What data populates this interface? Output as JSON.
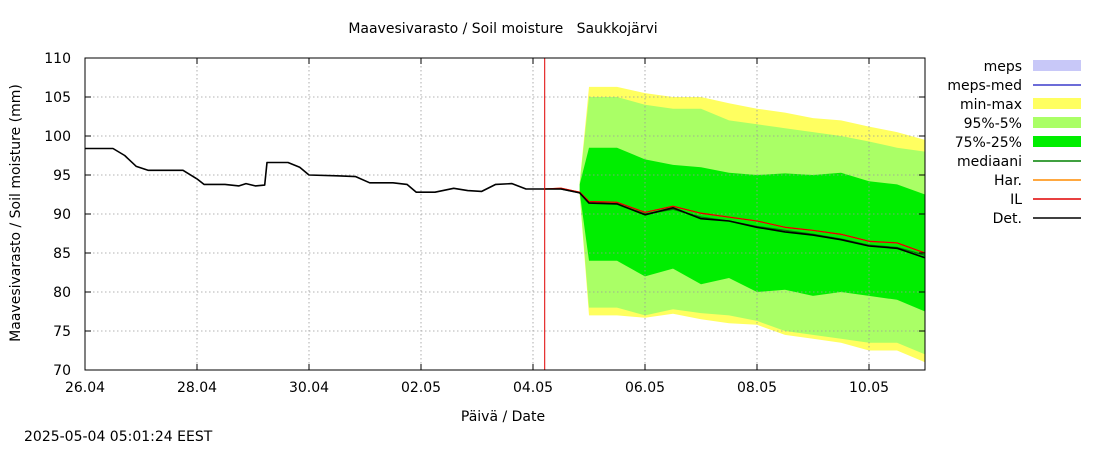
{
  "timestamp": "2025-05-04 05:01:24 EEST",
  "chart_data": {
    "type": "area",
    "title": "Maavesivarasto / Soil moisture   Saukkojärvi",
    "xlabel": "Päivä / Date",
    "ylabel": "Maavesivarasto / Soil moisture (mm)",
    "xlim": [
      "26.04 00:00",
      "11.05 00:00"
    ],
    "ylim": [
      70,
      110
    ],
    "yticks": [
      70,
      75,
      80,
      85,
      90,
      95,
      100,
      105,
      110
    ],
    "xticks": [
      "26.04",
      "28.04",
      "30.04",
      "02.05",
      "04.05",
      "06.05",
      "08.05",
      "10.05"
    ],
    "grid": true,
    "legend_position": "right",
    "now_marker": "04.05 05:01",
    "legend": [
      {
        "label": "meps",
        "kind": "band",
        "color": "#c8c8f8"
      },
      {
        "label": "meps-med",
        "kind": "line",
        "color": "#3c3ccc"
      },
      {
        "label": "min-max",
        "kind": "band",
        "color": "#ffff60"
      },
      {
        "label": "95%-5%",
        "kind": "band",
        "color": "#aaff66"
      },
      {
        "label": "75%-25%",
        "kind": "band",
        "color": "#00ee00"
      },
      {
        "label": "mediaani",
        "kind": "line",
        "color": "#008000"
      },
      {
        "label": "Har.",
        "kind": "line",
        "color": "#ff8c00"
      },
      {
        "label": "IL",
        "kind": "line",
        "color": "#e00000"
      },
      {
        "label": "Det.",
        "kind": "line",
        "color": "#000000"
      }
    ],
    "observed": {
      "name": "Det.",
      "points": [
        [
          "26.04 00:00",
          98.4
        ],
        [
          "26.04 12:00",
          98.4
        ],
        [
          "26.04 17:00",
          97.5
        ],
        [
          "26.04 22:00",
          96.1
        ],
        [
          "27.04 03:00",
          95.6
        ],
        [
          "27.04 12:00",
          95.6
        ],
        [
          "27.04 18:00",
          95.6
        ],
        [
          "28.04 00:00",
          94.5
        ],
        [
          "28.04 03:00",
          93.8
        ],
        [
          "28.04 12:00",
          93.8
        ],
        [
          "28.04 18:00",
          93.6
        ],
        [
          "28.04 21:00",
          93.9
        ],
        [
          "29.04 01:00",
          93.6
        ],
        [
          "29.04 05:00",
          93.7
        ],
        [
          "29.04 06:00",
          96.6
        ],
        [
          "29.04 15:00",
          96.6
        ],
        [
          "29.04 20:00",
          96.0
        ],
        [
          "30.04 00:00",
          95.0
        ],
        [
          "30.04 12:00",
          94.9
        ],
        [
          "30.04 20:00",
          94.8
        ],
        [
          "01.05 02:00",
          94.0
        ],
        [
          "01.05 12:00",
          94.0
        ],
        [
          "01.05 18:00",
          93.8
        ],
        [
          "01.05 22:00",
          92.8
        ],
        [
          "02.05 06:00",
          92.8
        ],
        [
          "02.05 14:00",
          93.3
        ],
        [
          "02.05 20:00",
          93.0
        ],
        [
          "03.05 02:00",
          92.9
        ],
        [
          "03.05 08:00",
          93.8
        ],
        [
          "03.05 15:00",
          93.9
        ],
        [
          "03.05 21:00",
          93.2
        ],
        [
          "04.05 05:00",
          93.2
        ]
      ]
    },
    "forecast_x": [
      "04.05 05:00",
      "04.05 12:00",
      "04.05 20:00",
      "05.05 00:00",
      "05.05 12:00",
      "06.05 00:00",
      "06.05 12:00",
      "07.05 00:00",
      "07.05 12:00",
      "08.05 00:00",
      "08.05 12:00",
      "09.05 00:00",
      "09.05 12:00",
      "10.05 00:00",
      "10.05 12:00",
      "11.05 00:00"
    ],
    "bands": [
      {
        "name": "min-max",
        "start": "04.05 20:00",
        "lower": [
          93.0,
          93.0,
          92.5,
          77.0,
          77.0,
          76.7,
          77.2,
          76.5,
          76.0,
          75.8,
          74.5,
          74.0,
          73.5,
          72.5,
          72.5,
          71.0
        ],
        "upper": [
          93.2,
          93.6,
          94.0,
          106.3,
          106.3,
          105.5,
          105.0,
          105.0,
          104.2,
          103.5,
          103.0,
          102.3,
          102.0,
          101.2,
          100.5,
          99.5
        ]
      },
      {
        "name": "95%-5%",
        "start": "04.05 20:00",
        "lower": [
          93.0,
          93.0,
          92.5,
          78.0,
          78.0,
          77.0,
          77.8,
          77.3,
          77.0,
          76.3,
          75.0,
          74.5,
          74.0,
          73.5,
          73.5,
          72.0
        ],
        "upper": [
          93.2,
          93.6,
          94.0,
          105.0,
          105.0,
          104.0,
          103.5,
          103.5,
          102.0,
          101.5,
          101.0,
          100.5,
          100.0,
          99.3,
          98.5,
          98.0
        ]
      },
      {
        "name": "75%-25%",
        "start": "04.05 20:00",
        "lower": [
          93.1,
          93.1,
          92.8,
          84.0,
          84.0,
          82.0,
          83.0,
          81.0,
          81.8,
          80.0,
          80.3,
          79.5,
          80.0,
          79.5,
          79.0,
          77.5
        ],
        "upper": [
          93.2,
          93.4,
          93.8,
          98.5,
          98.5,
          97.0,
          96.3,
          96.0,
          95.3,
          95.0,
          95.2,
          95.0,
          95.3,
          94.2,
          93.8,
          92.5
        ]
      }
    ],
    "series": [
      {
        "name": "mediaani",
        "y": [
          93.2,
          93.2,
          92.7,
          91.5,
          91.3,
          90.0,
          90.6,
          89.6,
          89.1,
          88.4,
          87.9,
          87.4,
          86.8,
          86.0,
          85.7,
          84.7
        ]
      },
      {
        "name": "Har.",
        "y": [
          93.2,
          93.3,
          92.8,
          91.6,
          91.5,
          90.2,
          91.0,
          90.1,
          89.6,
          89.1,
          88.3,
          87.9,
          87.4,
          86.5,
          86.3,
          85.0
        ]
      },
      {
        "name": "IL",
        "y": [
          93.2,
          93.3,
          92.8,
          91.6,
          91.5,
          90.2,
          91.0,
          90.1,
          89.6,
          89.1,
          88.3,
          87.9,
          87.4,
          86.5,
          86.3,
          85.0
        ]
      },
      {
        "name": "Det.",
        "y": [
          93.2,
          93.2,
          92.7,
          91.4,
          91.3,
          89.9,
          90.8,
          89.4,
          89.1,
          88.3,
          87.7,
          87.3,
          86.7,
          85.9,
          85.6,
          84.4
        ]
      }
    ]
  }
}
